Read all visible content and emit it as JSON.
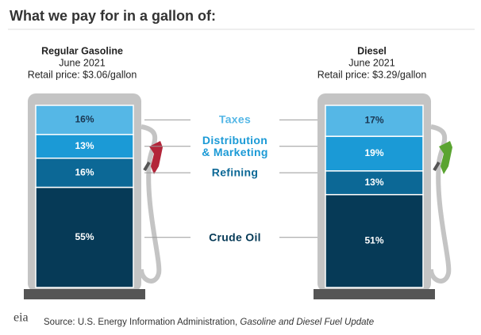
{
  "chart_data": {
    "type": "pump",
    "title": "What we pay for in a gallon of:",
    "categories": [
      "Regular Gasoline",
      "Diesel"
    ],
    "dates": [
      "June 2021",
      "June 2021"
    ],
    "prices": [
      "Retail price: $3.06/gallon",
      "Retail price: $3.29/gallon"
    ],
    "nozzle_colors": [
      "#b3263a",
      "#5aa431"
    ],
    "series": [
      {
        "name": "Crude Oil",
        "color": "#063a57",
        "label_color": "#063a57",
        "values": [
          55,
          51
        ],
        "value_labels": [
          "55%",
          "51%"
        ]
      },
      {
        "name": "Refining",
        "color": "#0c6896",
        "label_color": "#0c6896",
        "values": [
          16,
          13
        ],
        "value_labels": [
          "16%",
          "13%"
        ]
      },
      {
        "name": "Distribution & Marketing",
        "color": "#1b9ad6",
        "label_color": "#1b9ad6",
        "values": [
          13,
          19
        ],
        "value_labels": [
          "13%",
          "19%"
        ]
      },
      {
        "name": "Taxes",
        "color": "#55b7e6",
        "label_color": "#55b7e6",
        "values": [
          16,
          17
        ],
        "value_labels": [
          "16%",
          "17%"
        ]
      }
    ],
    "source": "Source: U.S. Energy Information Administration, ",
    "source_title": "Gasoline and Diesel Fuel Update",
    "logo": "eia"
  }
}
